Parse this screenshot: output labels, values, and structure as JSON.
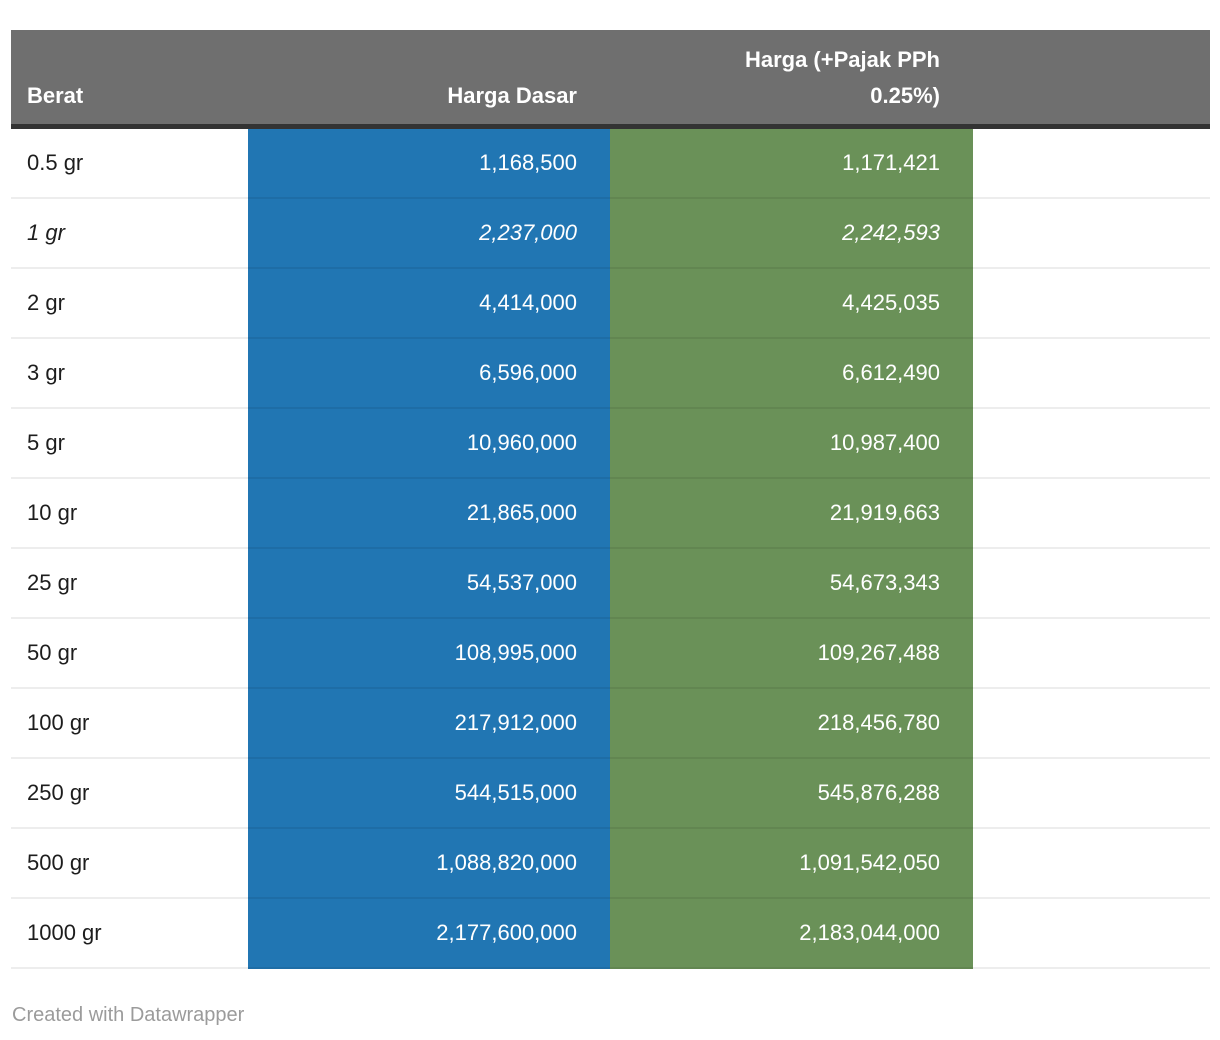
{
  "colors": {
    "header_bg": "#6f6f6f",
    "header_border": "#333333",
    "header_text": "#ffffff",
    "harga_dasar_bg": "#2176b3",
    "harga_pajak_bg": "#6a9158",
    "value_text": "#ffffff",
    "berat_text": "#1d1d1d",
    "row_divider": "rgba(0,0,0,0.07)",
    "credit_text": "#9b9b9b"
  },
  "table": {
    "columns": [
      {
        "id": "berat",
        "label": "Berat",
        "align": "left"
      },
      {
        "id": "harga_dasar",
        "label": "Harga Dasar",
        "align": "right"
      },
      {
        "id": "harga_pajak",
        "label": "Harga (+Pajak PPh\n0.25%)",
        "align": "right"
      }
    ],
    "rows": [
      {
        "berat": "0.5 gr",
        "harga_dasar": "1,168,500",
        "harga_pajak": "1,171,421",
        "italic": false
      },
      {
        "berat": "1 gr",
        "harga_dasar": "2,237,000",
        "harga_pajak": "2,242,593",
        "italic": true
      },
      {
        "berat": "2 gr",
        "harga_dasar": "4,414,000",
        "harga_pajak": "4,425,035",
        "italic": false
      },
      {
        "berat": "3 gr",
        "harga_dasar": "6,596,000",
        "harga_pajak": "6,612,490",
        "italic": false
      },
      {
        "berat": "5 gr",
        "harga_dasar": "10,960,000",
        "harga_pajak": "10,987,400",
        "italic": false
      },
      {
        "berat": "10 gr",
        "harga_dasar": "21,865,000",
        "harga_pajak": "21,919,663",
        "italic": false
      },
      {
        "berat": "25 gr",
        "harga_dasar": "54,537,000",
        "harga_pajak": "54,673,343",
        "italic": false
      },
      {
        "berat": "50 gr",
        "harga_dasar": "108,995,000",
        "harga_pajak": "109,267,488",
        "italic": false
      },
      {
        "berat": "100 gr",
        "harga_dasar": "217,912,000",
        "harga_pajak": "218,456,780",
        "italic": false
      },
      {
        "berat": "250 gr",
        "harga_dasar": "544,515,000",
        "harga_pajak": "545,876,288",
        "italic": false
      },
      {
        "berat": "500 gr",
        "harga_dasar": "1,088,820,000",
        "harga_pajak": "1,091,542,050",
        "italic": false
      },
      {
        "berat": "1000 gr",
        "harga_dasar": "2,177,600,000",
        "harga_pajak": "2,183,044,000",
        "italic": false
      }
    ]
  },
  "chart_data": {
    "type": "table",
    "columns": [
      "Berat",
      "Harga Dasar",
      "Harga (+Pajak PPh 0.25%)"
    ],
    "rows": [
      [
        "0.5 gr",
        1168500,
        1171421
      ],
      [
        "1 gr",
        2237000,
        2242593
      ],
      [
        "2 gr",
        4414000,
        4425035
      ],
      [
        "3 gr",
        6596000,
        6612490
      ],
      [
        "5 gr",
        10960000,
        10987400
      ],
      [
        "10 gr",
        21865000,
        21919663
      ],
      [
        "25 gr",
        54537000,
        54673343
      ],
      [
        "50 gr",
        108995000,
        109267488
      ],
      [
        "100 gr",
        217912000,
        218456780
      ],
      [
        "250 gr",
        544515000,
        545876288
      ],
      [
        "500 gr",
        1088820000,
        1091542050
      ],
      [
        "1000 gr",
        2177600000,
        2183044000
      ]
    ]
  },
  "footer": {
    "credit": "Created with Datawrapper"
  }
}
